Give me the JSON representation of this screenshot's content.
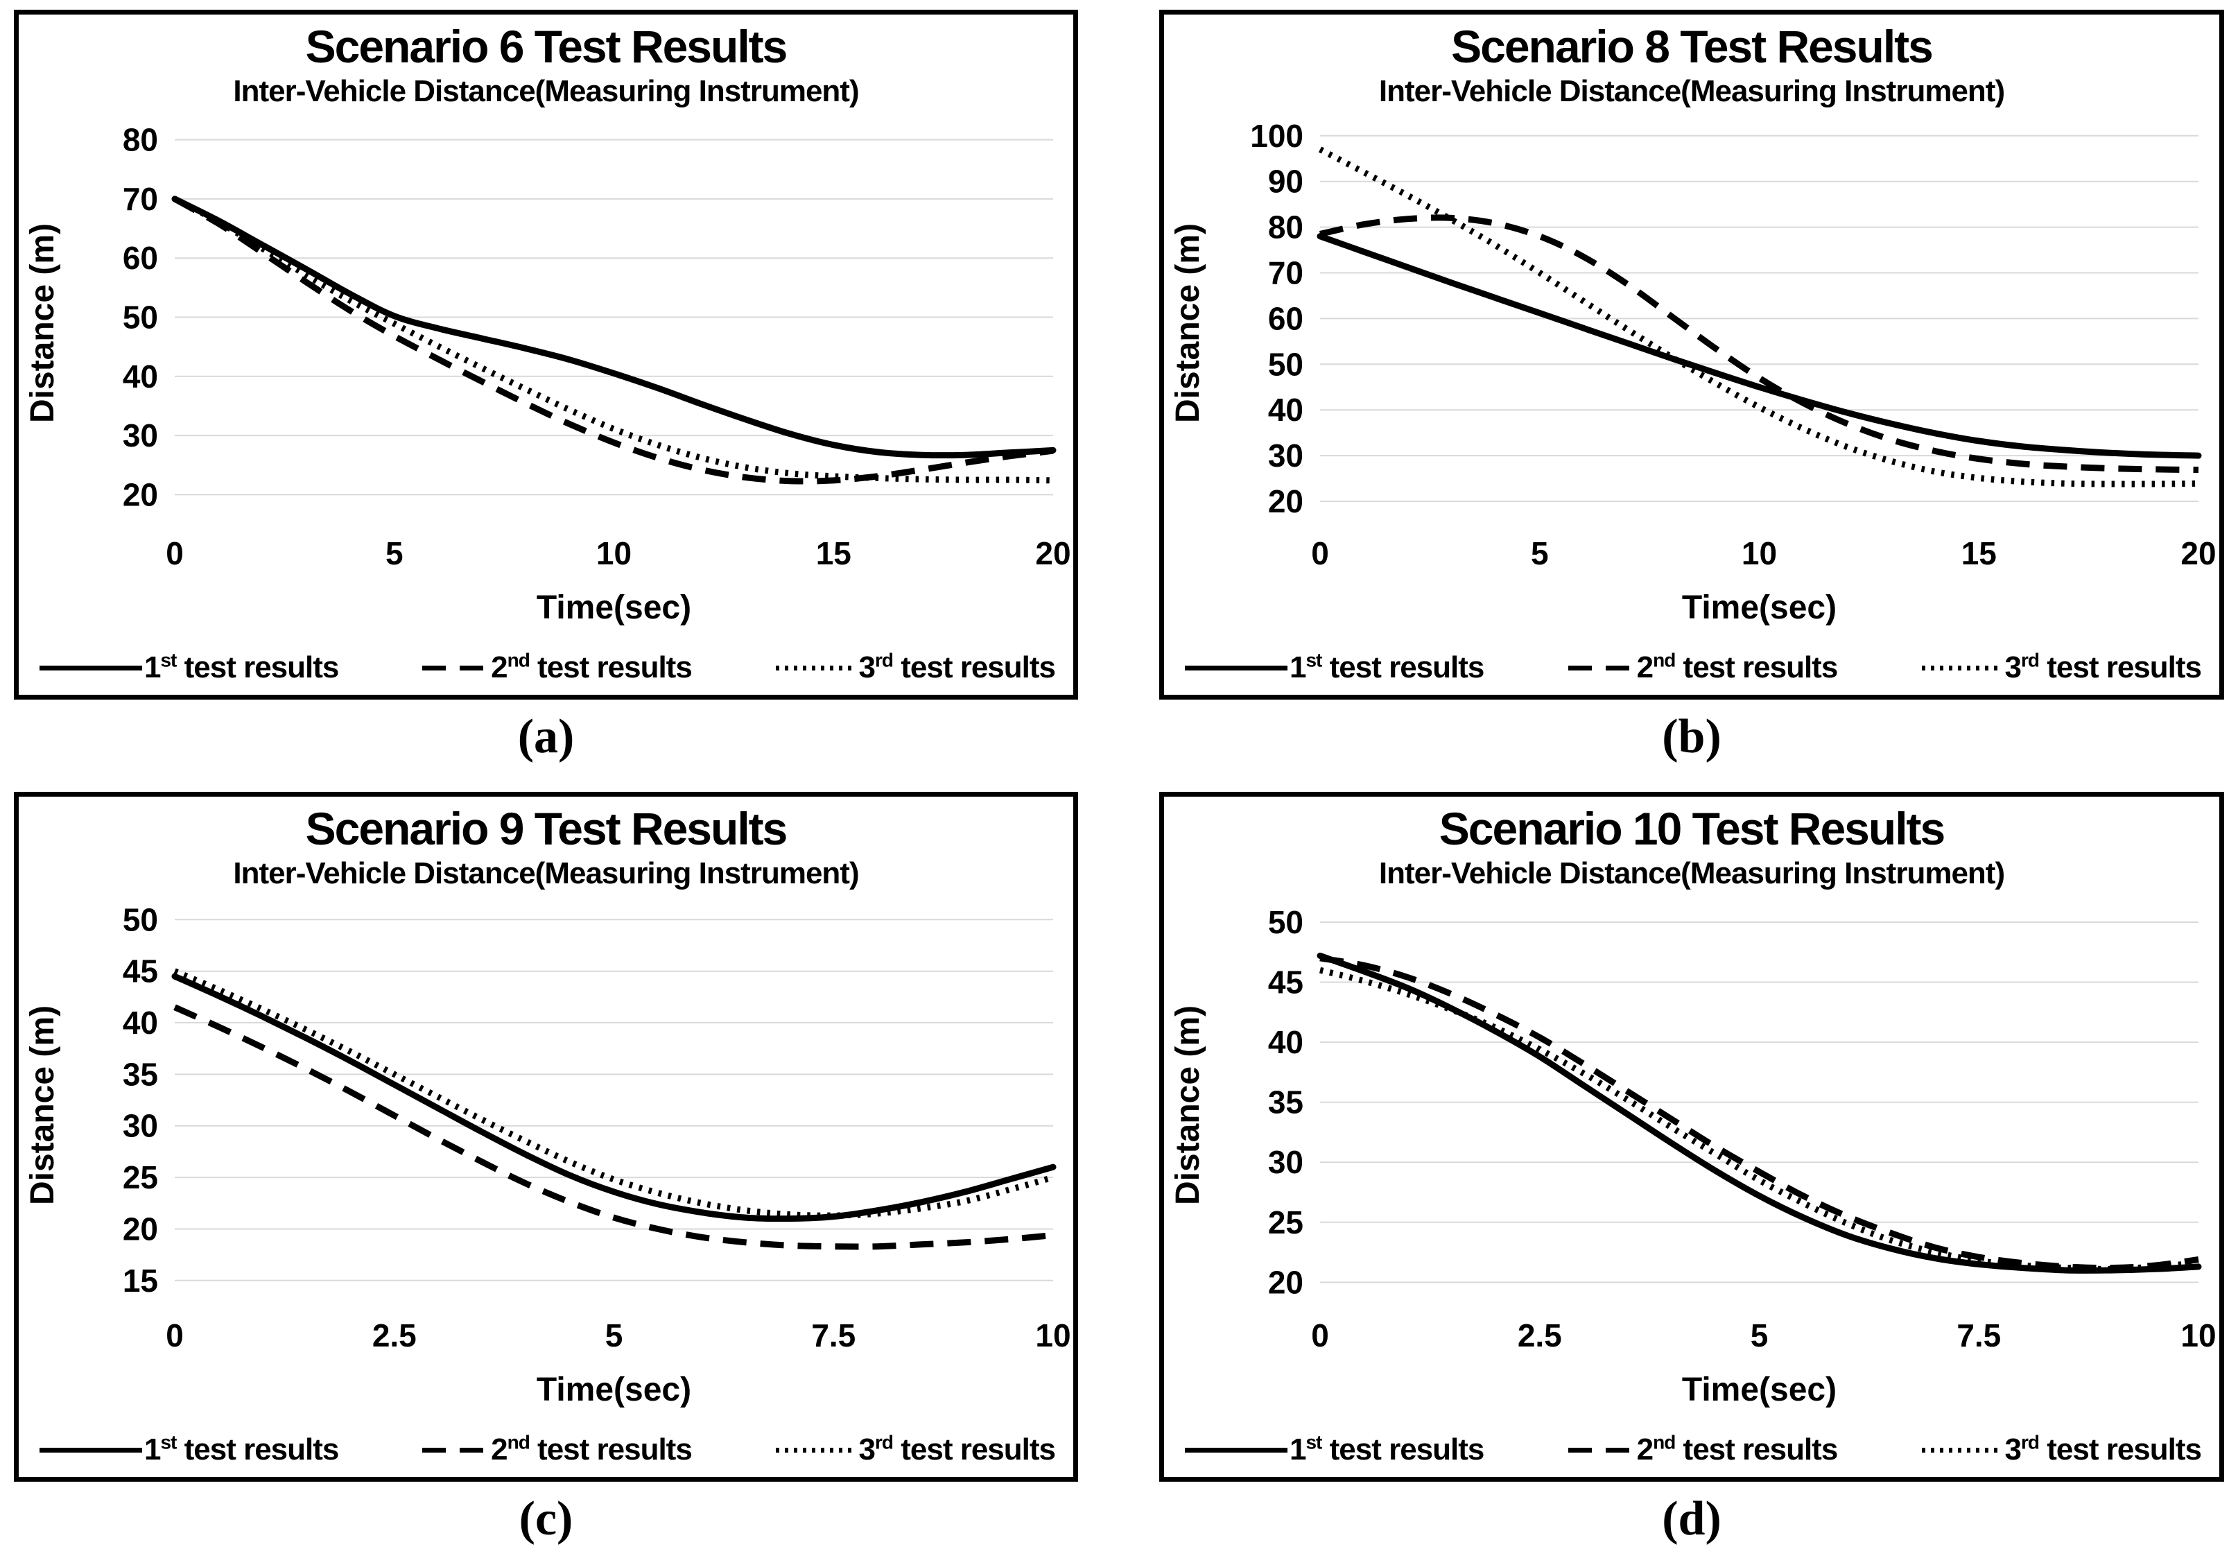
{
  "colors": {
    "line": "#000000",
    "grid": "#d9d9d9",
    "border": "#000000",
    "background": "#ffffff"
  },
  "legend_items": [
    {
      "num": "1",
      "sup": "st",
      "rest": " test results",
      "style": "solid"
    },
    {
      "num": "2",
      "sup": "nd",
      "rest": " test results",
      "style": "dashed"
    },
    {
      "num": "3",
      "sup": "rd",
      "rest": " test results",
      "style": "dotted"
    }
  ],
  "chart_data": [
    {
      "type": "line",
      "caption": "(a)",
      "title": "Scenario 6 Test Results",
      "subtitle": "Inter-Vehicle Distance(Measuring Instrument)",
      "xlabel": "Time(sec)",
      "ylabel": "Distance (m)",
      "xlim": [
        0,
        20
      ],
      "ylim": [
        15,
        83
      ],
      "xticks": [
        0,
        5,
        10,
        15,
        20
      ],
      "yticks": [
        20,
        30,
        40,
        50,
        60,
        70,
        80
      ],
      "grid": true,
      "legend_position": "bottom",
      "legend": [
        "1st test results",
        "2nd test results",
        "3rd test results"
      ],
      "x": [
        0,
        1,
        2,
        3,
        4,
        5,
        6,
        7,
        8,
        9,
        10,
        11,
        12,
        13,
        14,
        15,
        16,
        17,
        18,
        19,
        20
      ],
      "series": [
        {
          "name": "1st test results",
          "style": "solid",
          "values": [
            70,
            66.3,
            62.2,
            58.1,
            53.9,
            50.2,
            48.1,
            46.4,
            44.7,
            42.8,
            40.5,
            38,
            35.3,
            32.7,
            30.3,
            28.4,
            27.2,
            26.7,
            26.7,
            27.1,
            27.5
          ]
        },
        {
          "name": "2nd test results",
          "style": "dashed",
          "values": [
            70,
            65.8,
            60.9,
            55.9,
            51.1,
            46.8,
            42.9,
            39.1,
            35.4,
            31.9,
            28.8,
            26.2,
            24.2,
            22.9,
            22.3,
            22.4,
            23.1,
            24.2,
            25.4,
            26.5,
            27.4
          ]
        },
        {
          "name": "3rd test results",
          "style": "dotted",
          "values": [
            70,
            66.1,
            61.6,
            57.1,
            52.8,
            48.9,
            45.1,
            41.4,
            37.8,
            34.3,
            31.1,
            28.4,
            26.2,
            24.6,
            23.6,
            23.1,
            22.8,
            22.6,
            22.5,
            22.5,
            22.4
          ]
        }
      ]
    },
    {
      "type": "line",
      "caption": "(b)",
      "title": "Scenario 8 Test Results",
      "subtitle": "Inter-Vehicle Distance(Measuring Instrument)",
      "xlabel": "Time(sec)",
      "ylabel": "Distance (m)",
      "xlim": [
        0,
        20
      ],
      "ylim": [
        15,
        103
      ],
      "xticks": [
        0,
        5,
        10,
        15,
        20
      ],
      "yticks": [
        20,
        30,
        40,
        50,
        60,
        70,
        80,
        90,
        100
      ],
      "grid": true,
      "legend_position": "bottom",
      "legend": [
        "1st test results",
        "2nd test results",
        "3rd test results"
      ],
      "x": [
        0,
        1,
        2,
        3,
        4,
        5,
        6,
        7,
        8,
        9,
        10,
        11,
        12,
        13,
        14,
        15,
        16,
        17,
        18,
        19,
        20
      ],
      "series": [
        {
          "name": "1st test results",
          "style": "solid",
          "values": [
            78,
            74.6,
            71.2,
            67.8,
            64.5,
            61.2,
            57.9,
            54.6,
            51.3,
            48.1,
            45,
            42.1,
            39.4,
            37,
            34.9,
            33.2,
            32,
            31.2,
            30.6,
            30.2,
            30
          ]
        },
        {
          "name": "2nd test results",
          "style": "dashed",
          "values": [
            78.5,
            80.6,
            81.8,
            82,
            80.8,
            78,
            73.5,
            67.5,
            60.5,
            53.5,
            47,
            41.5,
            37,
            33.5,
            31,
            29.3,
            28.2,
            27.6,
            27.2,
            27,
            26.9
          ]
        },
        {
          "name": "3rd test results",
          "style": "dotted",
          "values": [
            97,
            92,
            86.9,
            81.6,
            76,
            70,
            63.8,
            57.6,
            51.6,
            45.9,
            40.6,
            35.9,
            31.9,
            28.8,
            26.5,
            25.1,
            24.3,
            23.9,
            23.8,
            23.8,
            23.9
          ]
        }
      ]
    },
    {
      "type": "line",
      "caption": "(c)",
      "title": "Scenario 9 Test Results",
      "subtitle": "Inter-Vehicle Distance(Measuring Instrument)",
      "xlabel": "Time(sec)",
      "ylabel": "Distance (m)",
      "xlim": [
        0,
        10
      ],
      "ylim": [
        12.5,
        51.5
      ],
      "xticks": [
        0,
        2.5,
        5,
        7.5,
        10
      ],
      "yticks": [
        15,
        20,
        25,
        30,
        35,
        40,
        45,
        50
      ],
      "grid": true,
      "legend_position": "bottom",
      "legend": [
        "1st test results",
        "2nd test results",
        "3rd test results"
      ],
      "x": [
        0,
        0.5,
        1,
        1.5,
        2,
        2.5,
        3,
        3.5,
        4,
        4.5,
        5,
        5.5,
        6,
        6.5,
        7,
        7.5,
        8,
        8.5,
        9,
        9.5,
        10
      ],
      "series": [
        {
          "name": "1st test results",
          "style": "solid",
          "values": [
            44.5,
            42.6,
            40.6,
            38.5,
            36.3,
            34,
            31.7,
            29.4,
            27.2,
            25.2,
            23.6,
            22.4,
            21.6,
            21.1,
            21,
            21.2,
            21.8,
            22.6,
            23.6,
            24.8,
            26
          ]
        },
        {
          "name": "2nd test results",
          "style": "dashed",
          "values": [
            41.5,
            39.6,
            37.6,
            35.5,
            33.3,
            31,
            28.7,
            26.5,
            24.4,
            22.6,
            21.1,
            20,
            19.2,
            18.7,
            18.4,
            18.3,
            18.3,
            18.5,
            18.7,
            19,
            19.4
          ]
        },
        {
          "name": "3rd test results",
          "style": "dotted",
          "values": [
            45,
            43.2,
            41.3,
            39.3,
            37.2,
            35,
            32.8,
            30.6,
            28.5,
            26.5,
            24.8,
            23.5,
            22.5,
            21.8,
            21.4,
            21.3,
            21.5,
            22,
            22.7,
            23.8,
            25
          ]
        }
      ]
    },
    {
      "type": "line",
      "caption": "(d)",
      "title": "Scenario 10 Test Results",
      "subtitle": "Inter-Vehicle Distance(Measuring Instrument)",
      "xlabel": "Time(sec)",
      "ylabel": "Distance (m)",
      "xlim": [
        0,
        10
      ],
      "ylim": [
        18,
        51.5
      ],
      "xticks": [
        0,
        2.5,
        5,
        7.5,
        10
      ],
      "yticks": [
        20,
        25,
        30,
        35,
        40,
        45,
        50
      ],
      "grid": true,
      "legend_position": "bottom",
      "legend": [
        "1st test results",
        "2nd test results",
        "3rd test results"
      ],
      "x": [
        0,
        0.5,
        1,
        1.5,
        2,
        2.5,
        3,
        3.5,
        4,
        4.5,
        5,
        5.5,
        6,
        6.5,
        7,
        7.5,
        8,
        8.5,
        9,
        9.5,
        10
      ],
      "series": [
        {
          "name": "1st test results",
          "style": "solid",
          "values": [
            47.2,
            45.9,
            44.5,
            42.8,
            40.9,
            38.8,
            36.4,
            34,
            31.6,
            29.3,
            27.2,
            25.4,
            23.9,
            22.8,
            22,
            21.5,
            21.2,
            21,
            21,
            21.1,
            21.3
          ]
        },
        {
          "name": "2nd test results",
          "style": "dashed",
          "values": [
            47,
            46.4,
            45.4,
            44,
            42.3,
            40.4,
            38.2,
            35.9,
            33.6,
            31.3,
            29.2,
            27.2,
            25.5,
            24.1,
            22.9,
            22.1,
            21.6,
            21.3,
            21.2,
            21.4,
            21.9
          ]
        },
        {
          "name": "3rd test results",
          "style": "dotted",
          "values": [
            46,
            45.1,
            44,
            42.7,
            41.2,
            39.4,
            37.4,
            35.2,
            32.9,
            30.7,
            28.5,
            26.6,
            24.9,
            23.5,
            22.5,
            21.8,
            21.4,
            21.2,
            21.1,
            21.3,
            21.6
          ]
        }
      ]
    }
  ]
}
